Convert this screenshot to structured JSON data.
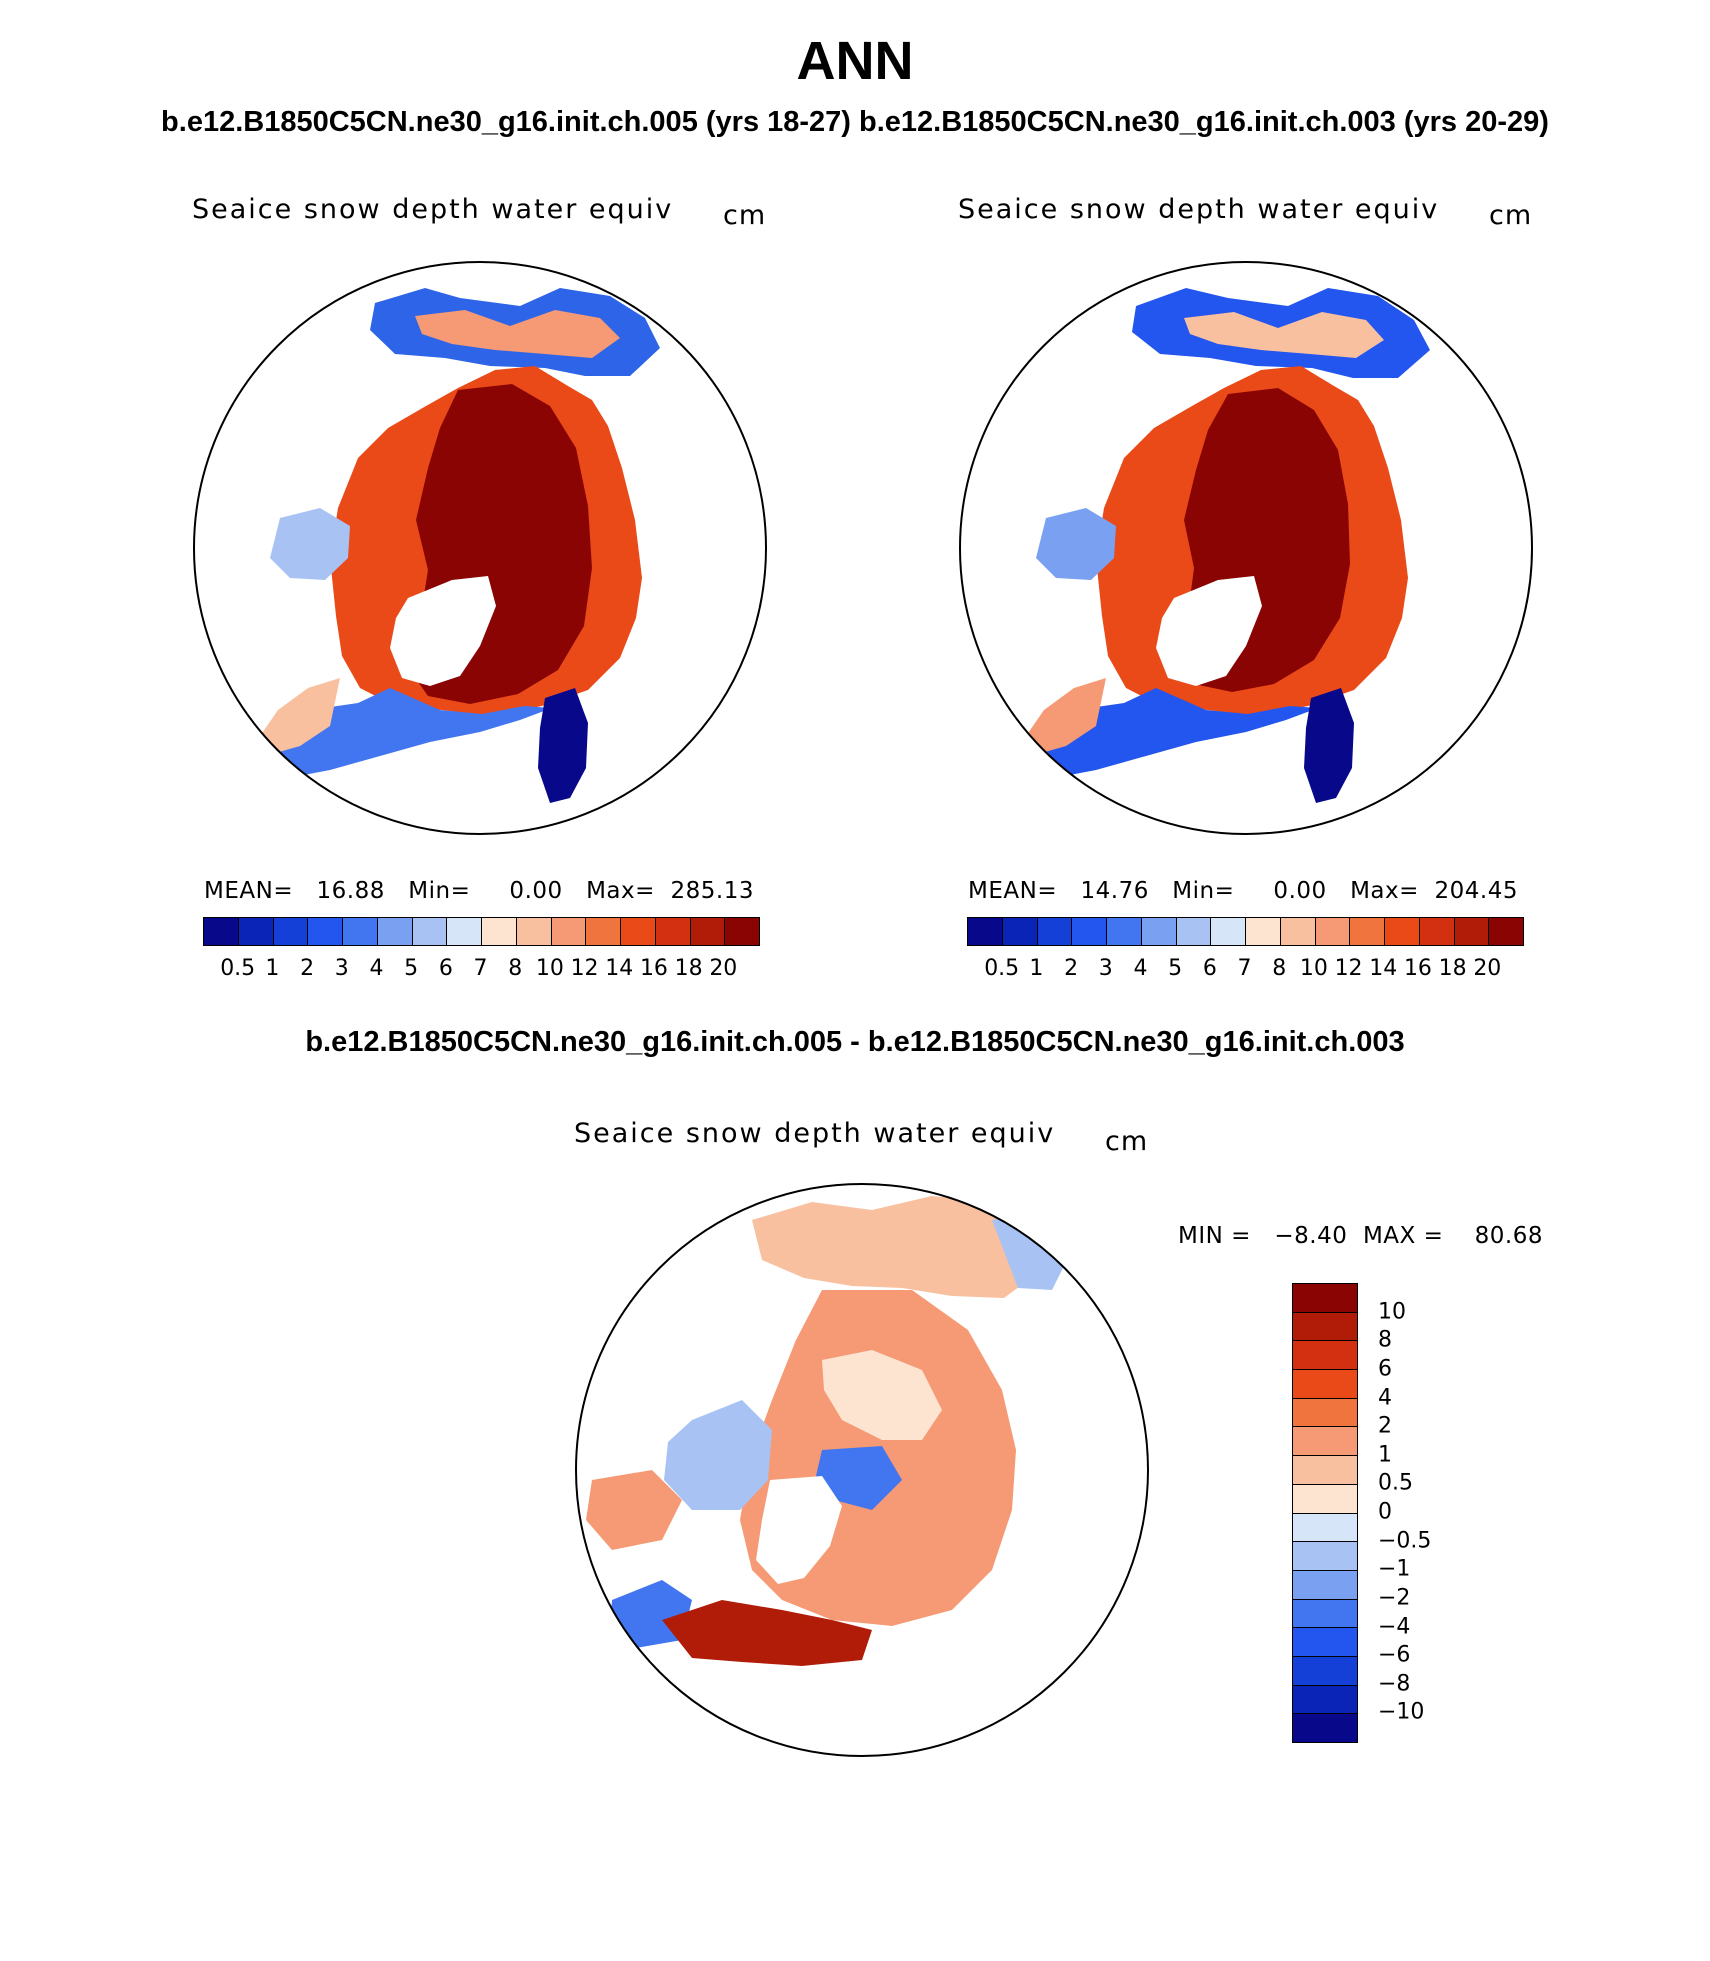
{
  "figure": {
    "title": "ANN",
    "subtitle": "b.e12.B1850C5CN.ne30_g16.init.ch.005 (yrs 18-27) b.e12.B1850C5CN.ne30_g16.init.ch.003 (yrs 20-29)",
    "diff_title": "b.e12.B1850C5CN.ne30_g16.init.ch.005 - b.e12.B1850C5CN.ne30_g16.init.ch.003"
  },
  "panels": [
    {
      "title": "Seaice snow depth water equiv",
      "units": "cm",
      "stats": "MEAN=   16.88   Min=     0.00   Max=  285.13"
    },
    {
      "title": "Seaice snow depth water equiv",
      "units": "cm",
      "stats": "MEAN=   14.76   Min=     0.00   Max=  204.45"
    },
    {
      "title": "Seaice snow depth water equiv",
      "units": "cm",
      "stats": "MIN =   −8.40  MAX =    80.68"
    }
  ],
  "colorbar": {
    "labels": [
      "0.5",
      "1",
      "2",
      "3",
      "4",
      "5",
      "6",
      "7",
      "8",
      "10",
      "12",
      "14",
      "16",
      "18",
      "20"
    ],
    "colors": [
      "#08088a",
      "#0a24b8",
      "#1440d8",
      "#2356ee",
      "#4276f0",
      "#7aa0f2",
      "#a8c2f4",
      "#d6e6f8",
      "#fde4d0",
      "#f9c0a0",
      "#f59a74",
      "#f0743e",
      "#ea4a18",
      "#d23010",
      "#b01c08",
      "#8a0404"
    ]
  },
  "diff_colorbar": {
    "labels": [
      "10",
      "8",
      "6",
      "4",
      "2",
      "1",
      "0.5",
      "0",
      "−0.5",
      "−1",
      "−2",
      "−4",
      "−6",
      "−8",
      "−10"
    ],
    "colors": [
      "#8a0404",
      "#b01c08",
      "#d23010",
      "#ea4a18",
      "#f0743e",
      "#f59a74",
      "#f9c0a0",
      "#fde4d0",
      "#d6e6f8",
      "#a8c2f4",
      "#7aa0f2",
      "#4276f0",
      "#2356ee",
      "#1440d8",
      "#0a24b8",
      "#08088a"
    ]
  },
  "chart_data": [
    {
      "type": "heatmap",
      "title": "Seaice snow depth water equiv",
      "units": "cm",
      "projection": "north-polar-stereographic",
      "case": "b.e12.B1850C5CN.ne30_g16.init.ch.005 (yrs 18-27)",
      "levels": [
        0.5,
        1,
        2,
        3,
        4,
        5,
        6,
        7,
        8,
        10,
        12,
        14,
        16,
        18,
        20
      ],
      "mean": 16.88,
      "min": 0.0,
      "max": 285.13
    },
    {
      "type": "heatmap",
      "title": "Seaice snow depth water equiv",
      "units": "cm",
      "projection": "north-polar-stereographic",
      "case": "b.e12.B1850C5CN.ne30_g16.init.ch.003 (yrs 20-29)",
      "levels": [
        0.5,
        1,
        2,
        3,
        4,
        5,
        6,
        7,
        8,
        10,
        12,
        14,
        16,
        18,
        20
      ],
      "mean": 14.76,
      "min": 0.0,
      "max": 204.45
    },
    {
      "type": "heatmap",
      "title": "Seaice snow depth water equiv",
      "units": "cm",
      "projection": "north-polar-stereographic",
      "case": "b.e12.B1850C5CN.ne30_g16.init.ch.005 - b.e12.B1850C5CN.ne30_g16.init.ch.003",
      "levels": [
        -10,
        -8,
        -6,
        -4,
        -2,
        -1,
        -0.5,
        0,
        0.5,
        1,
        2,
        4,
        6,
        8,
        10
      ],
      "min": -8.4,
      "max": 80.68
    }
  ]
}
